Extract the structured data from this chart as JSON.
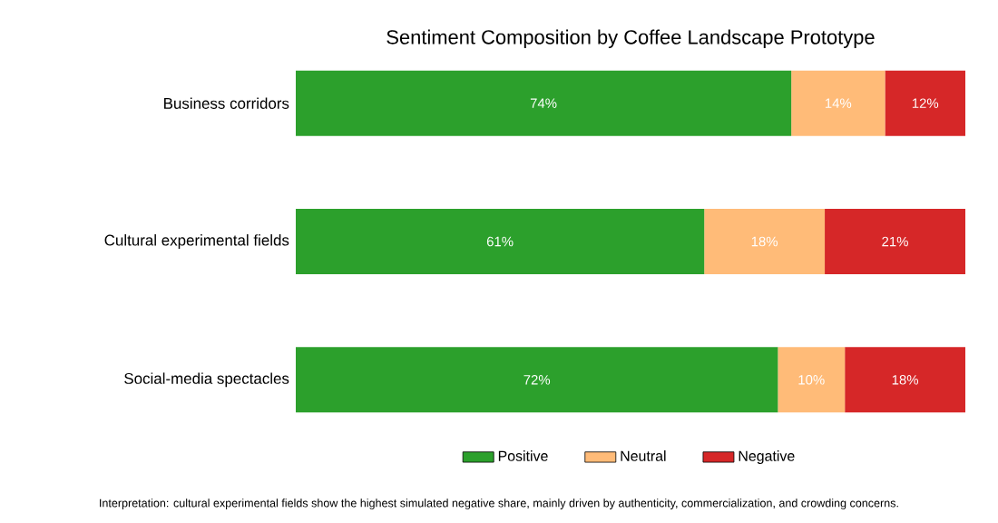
{
  "chart_data": {
    "type": "bar",
    "orientation": "horizontal",
    "stacked": true,
    "title": "Sentiment Composition by Coffee Landscape Prototype",
    "categories": [
      "Business corridors",
      "Cultural experimental fields",
      "Social-media spectacles"
    ],
    "series": [
      {
        "name": "Positive",
        "color": "#2ca02c",
        "values": [
          74,
          61,
          72
        ],
        "value_labels": [
          "74%",
          "61%",
          "72%"
        ]
      },
      {
        "name": "Neutral",
        "color": "#ffbb78",
        "values": [
          14,
          18,
          10
        ],
        "value_labels": [
          "14%",
          "18%",
          "10%"
        ]
      },
      {
        "name": "Negative",
        "color": "#d62728",
        "values": [
          12,
          21,
          18
        ],
        "value_labels": [
          "12%",
          "21%",
          "18%"
        ]
      }
    ],
    "xlim": [
      0,
      100
    ],
    "tick_labels": "y",
    "legend": "bottom",
    "annotations": [
      "Interpretation: cultural experimental fields show the highest simulated negative share, mainly driven by authenticity, commercialization, and crowding concerns."
    ]
  }
}
